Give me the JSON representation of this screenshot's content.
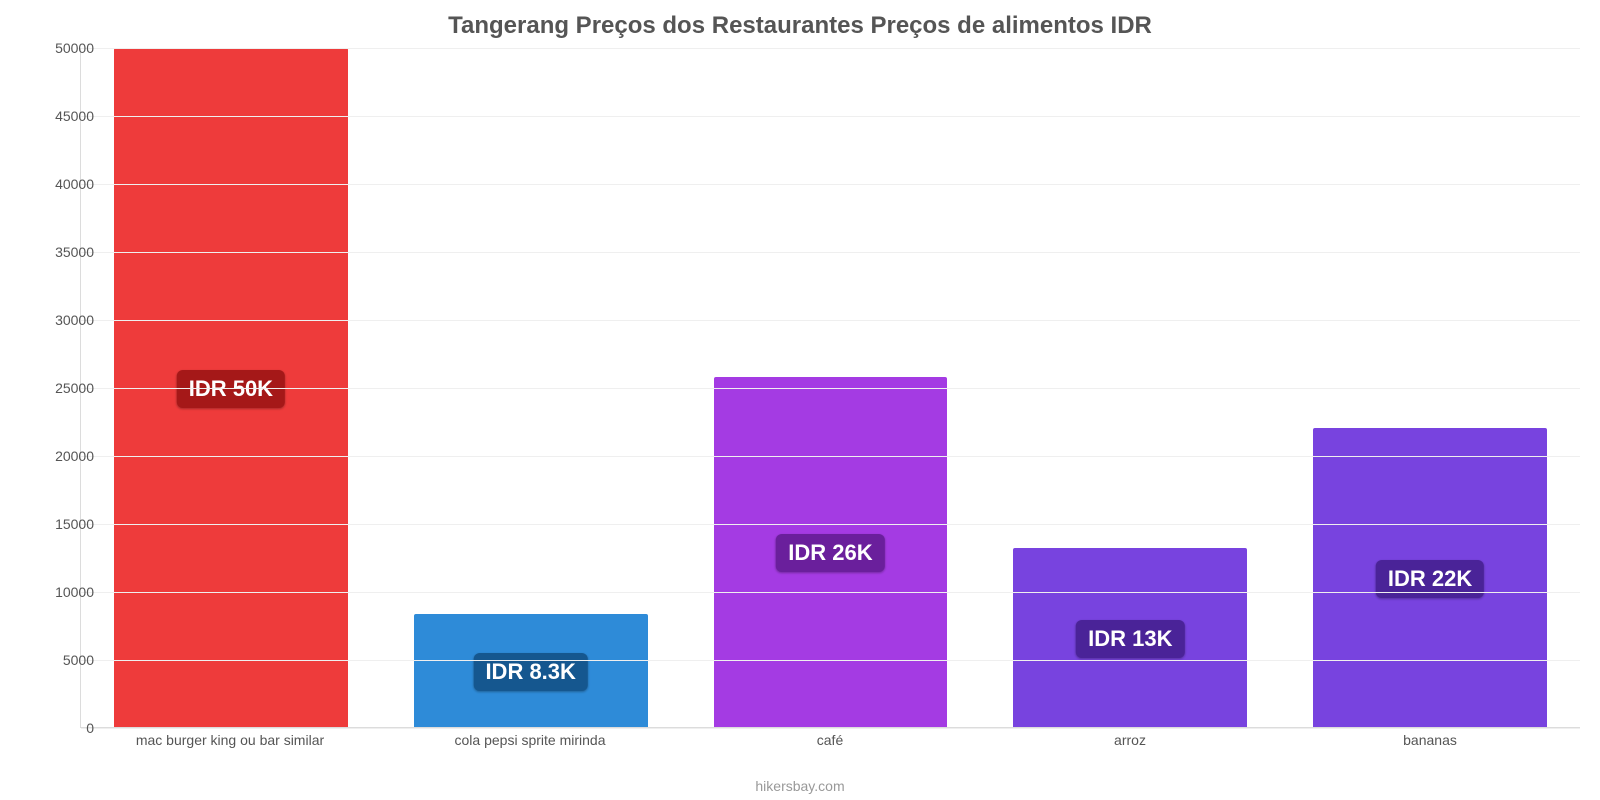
{
  "chart": {
    "type": "bar",
    "title": "Tangerang Preços dos Restaurantes Preços de alimentos IDR",
    "title_fontsize": 24,
    "title_color": "#555555",
    "ylim": [
      0,
      50000
    ],
    "ytick_step": 5000,
    "yticks": [
      0,
      5000,
      10000,
      15000,
      20000,
      25000,
      30000,
      35000,
      40000,
      45000,
      50000
    ],
    "axis_label_fontsize": 14,
    "axis_label_color": "#555555",
    "background_color": "#ffffff",
    "grid_color": "#efefef",
    "plot_border_color": "#dcdcdc",
    "bar_width_pct": 78,
    "pill_fontsize": 22,
    "pill_radius": 6,
    "categories": [
      {
        "label": "mac burger king ou bar similar",
        "value": 50000,
        "pill_text": "IDR 50K",
        "bar_color": "#ee3b3b",
        "pill_bg": "#a51818"
      },
      {
        "label": "cola pepsi sprite mirinda",
        "value": 8300,
        "pill_text": "IDR 8.3K",
        "bar_color": "#2e8bd8",
        "pill_bg": "#15578f"
      },
      {
        "label": "café",
        "value": 25800,
        "pill_text": "IDR 26K",
        "bar_color": "#a43be3",
        "pill_bg": "#6a1f9c"
      },
      {
        "label": "arroz",
        "value": 13150,
        "pill_text": "IDR 13K",
        "bar_color": "#7843df",
        "pill_bg": "#4a2398"
      },
      {
        "label": "bananas",
        "value": 22000,
        "pill_text": "IDR 22K",
        "bar_color": "#7843df",
        "pill_bg": "#4a2398"
      }
    ],
    "footer": "hikersbay.com",
    "footer_color": "#999999",
    "footer_fontsize": 14
  }
}
